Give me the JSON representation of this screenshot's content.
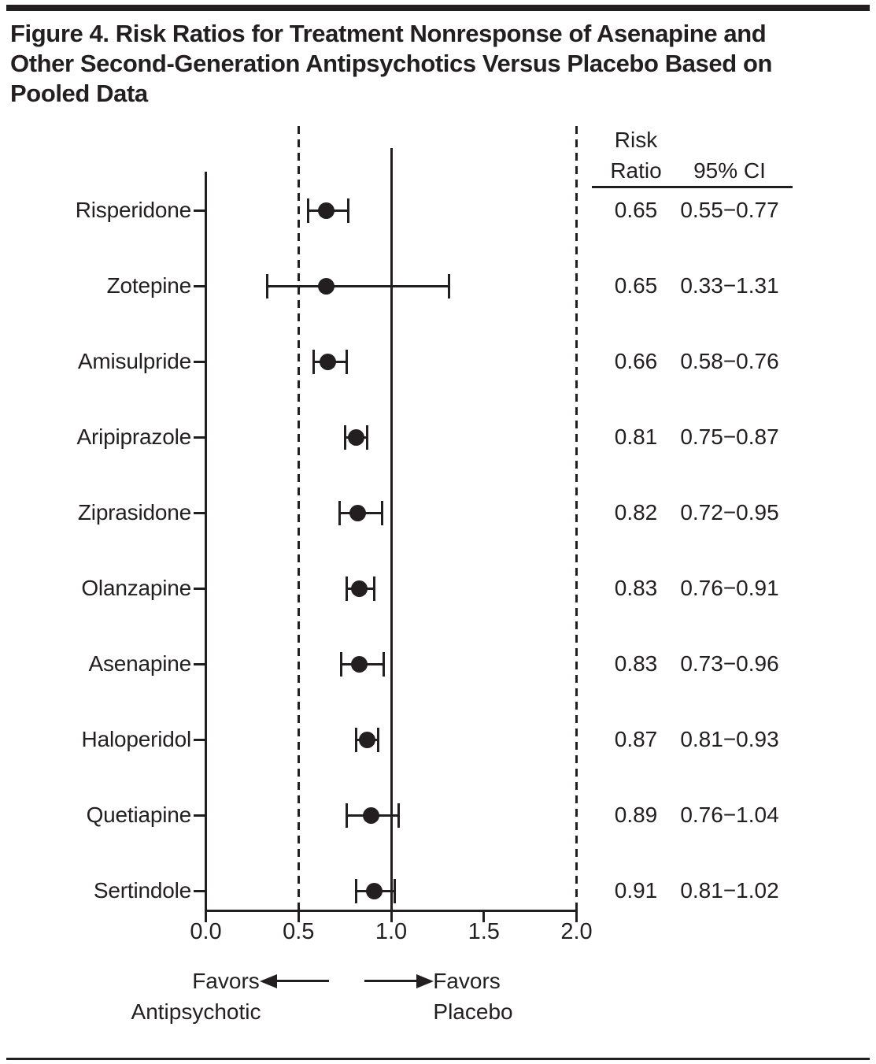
{
  "page": {
    "ink_color": "#231f20",
    "background_color": "#ffffff"
  },
  "chart_data": {
    "type": "forest",
    "title": "Figure 4. Risk Ratios for Treatment Nonresponse of Asenapine and Other Second-Generation Antipsychotics Versus Placebo Based on Pooled Data",
    "title_lines": [
      "Figure 4. Risk Ratios for Treatment Nonresponse of Asenapine and",
      "Other Second-Generation Antipsychotics Versus Placebo Based on",
      "Pooled Data"
    ],
    "x_axis": {
      "range": [
        0.0,
        2.0
      ],
      "tick_values": [
        0.0,
        0.5,
        1.0,
        1.5,
        2.0
      ],
      "tick_labels": [
        "0.0",
        "0.5",
        "1.0",
        "1.5",
        "2.0"
      ],
      "solid_reference_line": 1.0,
      "dashed_reference_lines": [
        0.5,
        2.0
      ],
      "grid": false
    },
    "column_headers": {
      "risk_ratio_line1": "Risk",
      "risk_ratio_line2": "Ratio",
      "ci": "95% CI"
    },
    "rows": [
      {
        "drug": "Risperidone",
        "risk_ratio": 0.65,
        "ci_low": 0.55,
        "ci_high": 0.77,
        "risk_ratio_text": "0.65",
        "ci_text": "0.55−0.77"
      },
      {
        "drug": "Zotepine",
        "risk_ratio": 0.65,
        "ci_low": 0.33,
        "ci_high": 1.31,
        "risk_ratio_text": "0.65",
        "ci_text": "0.33−1.31"
      },
      {
        "drug": "Amisulpride",
        "risk_ratio": 0.66,
        "ci_low": 0.58,
        "ci_high": 0.76,
        "risk_ratio_text": "0.66",
        "ci_text": "0.58−0.76"
      },
      {
        "drug": "Aripiprazole",
        "risk_ratio": 0.81,
        "ci_low": 0.75,
        "ci_high": 0.87,
        "risk_ratio_text": "0.81",
        "ci_text": "0.75−0.87"
      },
      {
        "drug": "Ziprasidone",
        "risk_ratio": 0.82,
        "ci_low": 0.72,
        "ci_high": 0.95,
        "risk_ratio_text": "0.82",
        "ci_text": "0.72−0.95"
      },
      {
        "drug": "Olanzapine",
        "risk_ratio": 0.83,
        "ci_low": 0.76,
        "ci_high": 0.91,
        "risk_ratio_text": "0.83",
        "ci_text": "0.76−0.91"
      },
      {
        "drug": "Asenapine",
        "risk_ratio": 0.83,
        "ci_low": 0.73,
        "ci_high": 0.96,
        "risk_ratio_text": "0.83",
        "ci_text": "0.73−0.96"
      },
      {
        "drug": "Haloperidol",
        "risk_ratio": 0.87,
        "ci_low": 0.81,
        "ci_high": 0.93,
        "risk_ratio_text": "0.87",
        "ci_text": "0.81−0.93"
      },
      {
        "drug": "Quetiapine",
        "risk_ratio": 0.89,
        "ci_low": 0.76,
        "ci_high": 1.04,
        "risk_ratio_text": "0.89",
        "ci_text": "0.76−1.04"
      },
      {
        "drug": "Sertindole",
        "risk_ratio": 0.91,
        "ci_low": 0.81,
        "ci_high": 1.02,
        "risk_ratio_text": "0.91",
        "ci_text": "0.81−1.02"
      }
    ],
    "footer": {
      "favors_left": [
        "Favors",
        "Antipsychotic"
      ],
      "favors_right": [
        "Favors",
        "Placebo"
      ]
    },
    "marker_color": "#231f20",
    "legend_position": "none"
  }
}
